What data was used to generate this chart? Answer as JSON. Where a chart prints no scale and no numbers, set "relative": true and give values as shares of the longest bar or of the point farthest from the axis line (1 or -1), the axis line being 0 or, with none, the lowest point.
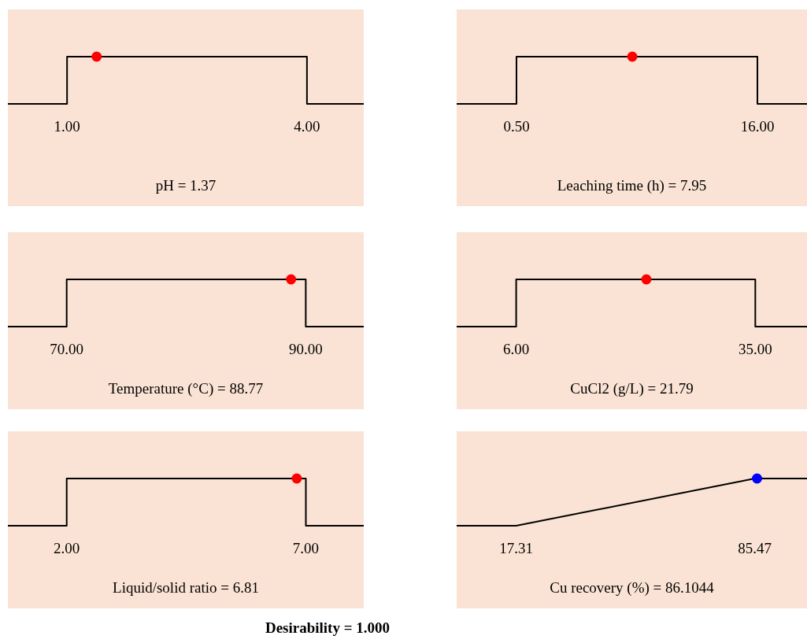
{
  "chart_data": [
    {
      "type": "line",
      "relative": true,
      "xlabel": "pH = 1.37",
      "xlim": [
        0.26,
        4.71
      ],
      "xticks": [
        {
          "value": 1,
          "label": "1.00"
        },
        {
          "value": 4,
          "label": "4.00"
        }
      ],
      "series": [
        {
          "type": "line",
          "color": "#000000",
          "x": [
            0.26,
            1,
            1,
            4,
            4,
            4.71
          ],
          "values": [
            0,
            0,
            1,
            1,
            0,
            0
          ]
        },
        {
          "type": "scatter",
          "color": "#ff0000",
          "x": [
            1.37
          ],
          "values": [
            1
          ]
        }
      ]
    },
    {
      "type": "line",
      "relative": true,
      "xlabel": "Leaching time (h) = 7.95",
      "xlim": [
        -3.35,
        19.19
      ],
      "xticks": [
        {
          "value": 0.5,
          "label": "0.50"
        },
        {
          "value": 16,
          "label": "16.00"
        }
      ],
      "series": [
        {
          "type": "line",
          "color": "#000000",
          "x": [
            -3.35,
            0.5,
            0.5,
            16,
            16,
            19.19
          ],
          "values": [
            0,
            0,
            1,
            1,
            0,
            0
          ]
        },
        {
          "type": "scatter",
          "color": "#ff0000",
          "x": [
            7.95
          ],
          "values": [
            1
          ]
        }
      ]
    },
    {
      "type": "line",
      "relative": true,
      "xlabel": "Temperature (°C) = 88.77",
      "xlim": [
        65.08,
        94.85
      ],
      "xticks": [
        {
          "value": 70,
          "label": "70.00"
        },
        {
          "value": 90,
          "label": "90.00"
        }
      ],
      "series": [
        {
          "type": "line",
          "color": "#000000",
          "x": [
            65.08,
            70,
            70,
            90,
            90,
            94.85
          ],
          "values": [
            0,
            0,
            1,
            1,
            0,
            0
          ]
        },
        {
          "type": "scatter",
          "color": "#ff0000",
          "x": [
            88.77
          ],
          "values": [
            1
          ]
        }
      ]
    },
    {
      "type": "line",
      "relative": true,
      "xlabel": "CuCl2 (g/L) = 21.79",
      "xlim": [
        -1.22,
        41.27
      ],
      "xticks": [
        {
          "value": 6,
          "label": "6.00"
        },
        {
          "value": 35,
          "label": "35.00"
        }
      ],
      "series": [
        {
          "type": "line",
          "color": "#000000",
          "x": [
            -1.22,
            6,
            6,
            35,
            35,
            41.27
          ],
          "values": [
            0,
            0,
            1,
            1,
            0,
            0
          ]
        },
        {
          "type": "scatter",
          "color": "#ff0000",
          "x": [
            21.79
          ],
          "values": [
            1
          ]
        }
      ]
    },
    {
      "type": "line",
      "relative": true,
      "xlabel": "Liquid/solid ratio = 6.81",
      "xlim": [
        0.77,
        8.21
      ],
      "xticks": [
        {
          "value": 2,
          "label": "2.00"
        },
        {
          "value": 7,
          "label": "7.00"
        }
      ],
      "series": [
        {
          "type": "line",
          "color": "#000000",
          "x": [
            0.77,
            2,
            2,
            7,
            7,
            8.21
          ],
          "values": [
            0,
            0,
            1,
            1,
            0,
            0
          ]
        },
        {
          "type": "scatter",
          "color": "#ff0000",
          "x": [
            6.81
          ],
          "values": [
            1
          ]
        }
      ]
    },
    {
      "type": "line",
      "relative": true,
      "xlabel": "Cu recovery (%) = 86.1044",
      "xlim": [
        0.33,
        100.37
      ],
      "xticks": [
        {
          "value": 17.31,
          "label": "17.31"
        },
        {
          "value": 85.47,
          "label": "85.47"
        }
      ],
      "series": [
        {
          "type": "line",
          "color": "#000000",
          "x": [
            0.33,
            17.31,
            85.47,
            100.37
          ],
          "values": [
            0,
            0,
            1,
            1
          ]
        },
        {
          "type": "scatter",
          "color": "#0000ff",
          "x": [
            86.1044
          ],
          "values": [
            1
          ]
        }
      ]
    },
    {
      "type": "other",
      "title": "Desirability = 1.000"
    }
  ]
}
